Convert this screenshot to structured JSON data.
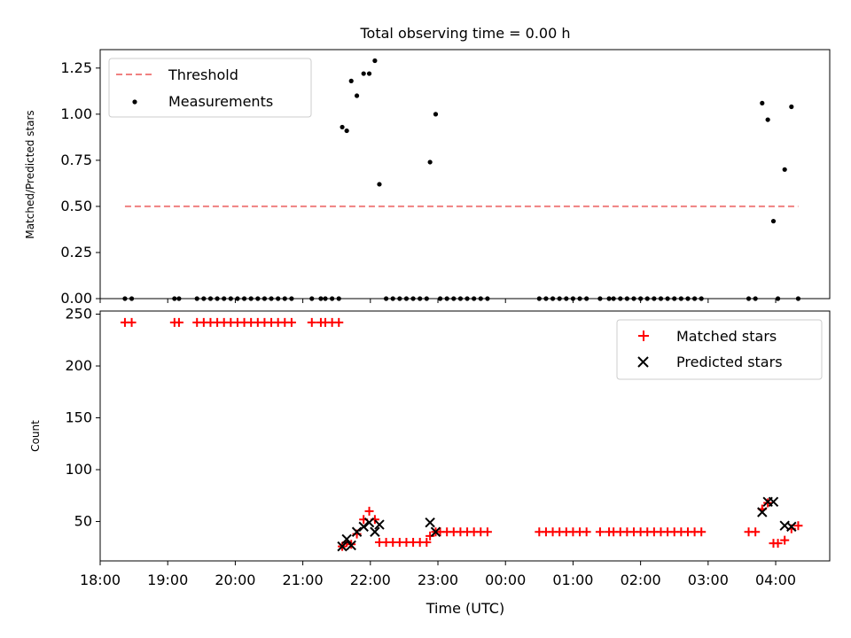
{
  "chart_data": [
    {
      "type": "scatter",
      "title": "Total observing time = 0.00 h",
      "xlabel": "",
      "ylabel": "Matched/Predicted stars",
      "xlim": [
        "18:00",
        "04:48"
      ],
      "ylim": [
        0,
        1.35
      ],
      "yticks": [
        "0.00",
        "0.25",
        "0.50",
        "0.75",
        "1.00",
        "1.25"
      ],
      "legend_position": "upper-left",
      "grid": false,
      "colors": {
        "threshold": "#f08080",
        "measurements": "#000000"
      },
      "series": [
        {
          "name": "Threshold",
          "style": "dashed-line",
          "points": [
            [
              "18:22",
              0.5
            ],
            [
              "04:20",
              0.5
            ]
          ]
        },
        {
          "name": "Measurements",
          "style": "dot",
          "points": [
            [
              "18:22",
              0
            ],
            [
              "18:28",
              0
            ],
            [
              "19:06",
              0
            ],
            [
              "19:10",
              0
            ],
            [
              "19:26",
              0
            ],
            [
              "19:32",
              0
            ],
            [
              "19:38",
              0
            ],
            [
              "19:44",
              0
            ],
            [
              "19:50",
              0
            ],
            [
              "19:56",
              0
            ],
            [
              "20:02",
              0
            ],
            [
              "20:08",
              0
            ],
            [
              "20:14",
              0
            ],
            [
              "20:20",
              0
            ],
            [
              "20:26",
              0
            ],
            [
              "20:32",
              0
            ],
            [
              "20:38",
              0
            ],
            [
              "20:44",
              0
            ],
            [
              "20:50",
              0
            ],
            [
              "21:08",
              0
            ],
            [
              "21:16",
              0
            ],
            [
              "21:20",
              0
            ],
            [
              "21:26",
              0
            ],
            [
              "21:32",
              0
            ],
            [
              "21:35",
              0.93
            ],
            [
              "21:39",
              0.91
            ],
            [
              "21:43",
              1.18
            ],
            [
              "21:48",
              1.1
            ],
            [
              "21:54",
              1.22
            ],
            [
              "21:59",
              1.22
            ],
            [
              "22:04",
              1.29
            ],
            [
              "22:08",
              0.62
            ],
            [
              "22:14",
              0
            ],
            [
              "22:20",
              0
            ],
            [
              "22:26",
              0
            ],
            [
              "22:32",
              0
            ],
            [
              "22:38",
              0
            ],
            [
              "22:44",
              0
            ],
            [
              "22:50",
              0
            ],
            [
              "22:53",
              0.74
            ],
            [
              "22:58",
              1.0
            ],
            [
              "23:02",
              0
            ],
            [
              "23:08",
              0
            ],
            [
              "23:14",
              0
            ],
            [
              "23:20",
              0
            ],
            [
              "23:26",
              0
            ],
            [
              "23:32",
              0
            ],
            [
              "23:38",
              0
            ],
            [
              "23:44",
              0
            ],
            [
              "00:30",
              0
            ],
            [
              "00:36",
              0
            ],
            [
              "00:42",
              0
            ],
            [
              "00:48",
              0
            ],
            [
              "00:54",
              0
            ],
            [
              "01:00",
              0
            ],
            [
              "01:06",
              0
            ],
            [
              "01:12",
              0
            ],
            [
              "01:24",
              0
            ],
            [
              "01:32",
              0
            ],
            [
              "01:36",
              0
            ],
            [
              "01:42",
              0
            ],
            [
              "01:48",
              0
            ],
            [
              "01:54",
              0
            ],
            [
              "02:00",
              0
            ],
            [
              "02:06",
              0
            ],
            [
              "02:12",
              0
            ],
            [
              "02:18",
              0
            ],
            [
              "02:24",
              0
            ],
            [
              "02:30",
              0
            ],
            [
              "02:36",
              0
            ],
            [
              "02:42",
              0
            ],
            [
              "02:48",
              0
            ],
            [
              "02:54",
              0
            ],
            [
              "03:36",
              0
            ],
            [
              "03:42",
              0
            ],
            [
              "03:48",
              1.06
            ],
            [
              "03:53",
              0.97
            ],
            [
              "03:58",
              0.42
            ],
            [
              "04:02",
              0
            ],
            [
              "04:08",
              0.7
            ],
            [
              "04:14",
              1.04
            ],
            [
              "04:20",
              0
            ]
          ]
        }
      ]
    },
    {
      "type": "scatter",
      "title": "",
      "xlabel": "Time (UTC)",
      "ylabel": "Count",
      "xlim": [
        "18:00",
        "04:48"
      ],
      "ylim": [
        12,
        253
      ],
      "yticks": [
        "50",
        "100",
        "150",
        "200",
        "250"
      ],
      "xticks": [
        "18:00",
        "19:00",
        "20:00",
        "21:00",
        "22:00",
        "23:00",
        "00:00",
        "01:00",
        "02:00",
        "03:00",
        "04:00"
      ],
      "legend_position": "upper-right",
      "grid": false,
      "colors": {
        "matched": "#ff0000",
        "predicted": "#000000"
      },
      "series": [
        {
          "name": "Matched stars",
          "marker": "plus",
          "points": [
            [
              "18:22",
              242
            ],
            [
              "18:28",
              242
            ],
            [
              "19:06",
              242
            ],
            [
              "19:10",
              242
            ],
            [
              "19:26",
              242
            ],
            [
              "19:32",
              242
            ],
            [
              "19:38",
              242
            ],
            [
              "19:44",
              242
            ],
            [
              "19:50",
              242
            ],
            [
              "19:56",
              242
            ],
            [
              "20:02",
              242
            ],
            [
              "20:08",
              242
            ],
            [
              "20:14",
              242
            ],
            [
              "20:20",
              242
            ],
            [
              "20:26",
              242
            ],
            [
              "20:32",
              242
            ],
            [
              "20:38",
              242
            ],
            [
              "20:44",
              242
            ],
            [
              "20:50",
              242
            ],
            [
              "21:08",
              242
            ],
            [
              "21:16",
              242
            ],
            [
              "21:20",
              242
            ],
            [
              "21:26",
              242
            ],
            [
              "21:32",
              242
            ],
            [
              "21:35",
              26
            ],
            [
              "21:39",
              30
            ],
            [
              "21:43",
              28
            ],
            [
              "21:48",
              38
            ],
            [
              "21:54",
              52
            ],
            [
              "21:59",
              60
            ],
            [
              "22:04",
              52
            ],
            [
              "22:08",
              30
            ],
            [
              "22:14",
              30
            ],
            [
              "22:20",
              30
            ],
            [
              "22:26",
              30
            ],
            [
              "22:32",
              30
            ],
            [
              "22:38",
              30
            ],
            [
              "22:44",
              30
            ],
            [
              "22:50",
              30
            ],
            [
              "22:53",
              36
            ],
            [
              "22:58",
              40
            ],
            [
              "23:02",
              40
            ],
            [
              "23:08",
              40
            ],
            [
              "23:14",
              40
            ],
            [
              "23:20",
              40
            ],
            [
              "23:26",
              40
            ],
            [
              "23:32",
              40
            ],
            [
              "23:38",
              40
            ],
            [
              "23:44",
              40
            ],
            [
              "00:30",
              40
            ],
            [
              "00:36",
              40
            ],
            [
              "00:42",
              40
            ],
            [
              "00:48",
              40
            ],
            [
              "00:54",
              40
            ],
            [
              "01:00",
              40
            ],
            [
              "01:06",
              40
            ],
            [
              "01:12",
              40
            ],
            [
              "01:24",
              40
            ],
            [
              "01:32",
              40
            ],
            [
              "01:36",
              40
            ],
            [
              "01:42",
              40
            ],
            [
              "01:48",
              40
            ],
            [
              "01:54",
              40
            ],
            [
              "02:00",
              40
            ],
            [
              "02:06",
              40
            ],
            [
              "02:12",
              40
            ],
            [
              "02:18",
              40
            ],
            [
              "02:24",
              40
            ],
            [
              "02:30",
              40
            ],
            [
              "02:36",
              40
            ],
            [
              "02:42",
              40
            ],
            [
              "02:48",
              40
            ],
            [
              "02:54",
              40
            ],
            [
              "03:36",
              40
            ],
            [
              "03:42",
              40
            ],
            [
              "03:48",
              62
            ],
            [
              "03:53",
              68
            ],
            [
              "03:58",
              29
            ],
            [
              "04:02",
              29
            ],
            [
              "04:08",
              32
            ],
            [
              "04:14",
              43
            ],
            [
              "04:20",
              46
            ]
          ]
        },
        {
          "name": "Predicted stars",
          "marker": "x",
          "points": [
            [
              "21:35",
              26
            ],
            [
              "21:39",
              33
            ],
            [
              "21:43",
              27
            ],
            [
              "21:48",
              40
            ],
            [
              "21:54",
              45
            ],
            [
              "21:59",
              49
            ],
            [
              "22:04",
              40
            ],
            [
              "22:08",
              47
            ],
            [
              "22:53",
              49
            ],
            [
              "22:58",
              40
            ],
            [
              "03:48",
              59
            ],
            [
              "03:53",
              69
            ],
            [
              "03:58",
              69
            ],
            [
              "04:08",
              46
            ],
            [
              "04:14",
              45
            ]
          ]
        }
      ]
    }
  ]
}
